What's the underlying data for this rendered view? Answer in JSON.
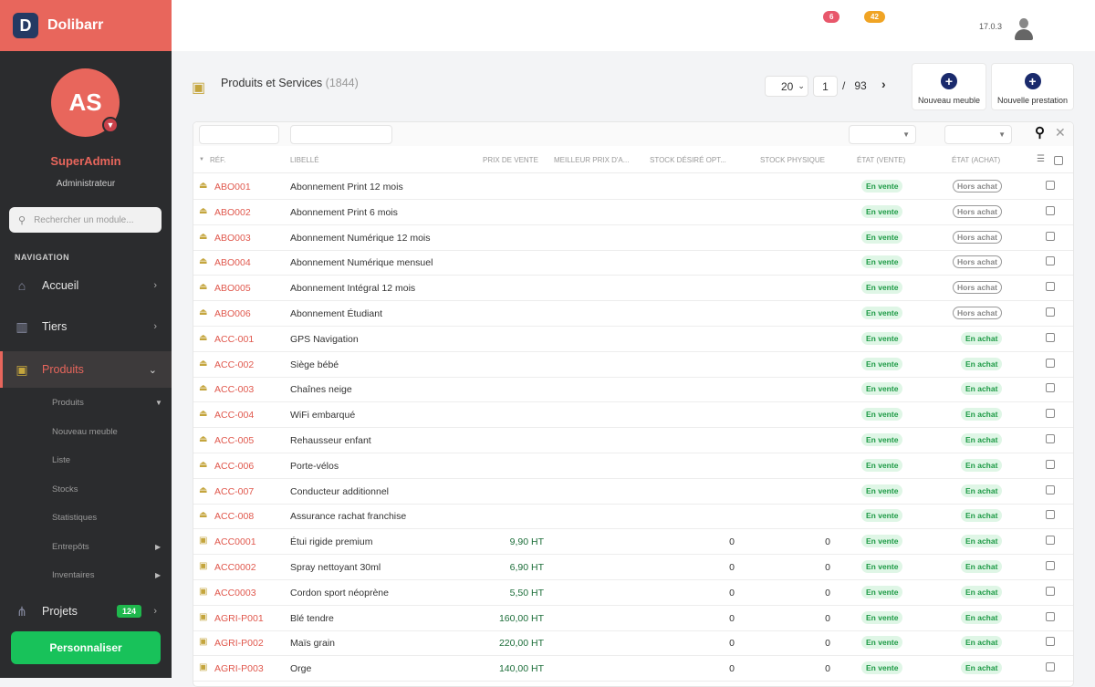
{
  "app": {
    "name": "Dolibarr",
    "logo_letter": "D"
  },
  "user": {
    "initials": "AS",
    "name": "SuperAdmin",
    "role": "Administrateur"
  },
  "sidebar": {
    "search_placeholder": "Rechercher un module...",
    "nav_label": "NAVIGATION",
    "items": [
      {
        "label": "Accueil",
        "icon": "home-icon"
      },
      {
        "label": "Tiers",
        "icon": "building-icon"
      },
      {
        "label": "Produits",
        "icon": "box-icon"
      },
      {
        "label": "Projets",
        "icon": "project-icon",
        "badge": "124"
      }
    ],
    "sub_items": [
      "Produits",
      "Nouveau meuble",
      "Liste",
      "Stocks",
      "Statistiques",
      "Entrepôts",
      "Inventaires"
    ],
    "personalize": "Personnaliser"
  },
  "topbar": {
    "badge_red": "6",
    "badge_orange": "42",
    "version": "17.0.3",
    "colors": {
      "red": "#e8576b",
      "orange": "#f0a424"
    }
  },
  "page": {
    "title": "Produits et Services",
    "count": "(1844)"
  },
  "pagination": {
    "per_page": "20",
    "current": "1",
    "separator": "/",
    "total": "93"
  },
  "actions": [
    "Nouveau meuble",
    "Nouvelle prestation"
  ],
  "columns": [
    "Réf.",
    "Libellé",
    "Prix de vente",
    "Meilleur prix d'a...",
    "Stock désiré opt...",
    "Stock physique",
    "État (vente)",
    "État (achat)"
  ],
  "rows": [
    {
      "ref": "ABO001",
      "label": "Abonnement Print 12 mois",
      "price": "",
      "stock_des": "",
      "stock_phys": "",
      "vente": "En vente",
      "achat": "Hors achat",
      "icon": "service"
    },
    {
      "ref": "ABO002",
      "label": "Abonnement Print 6 mois",
      "price": "",
      "stock_des": "",
      "stock_phys": "",
      "vente": "En vente",
      "achat": "Hors achat",
      "icon": "service"
    },
    {
      "ref": "ABO003",
      "label": "Abonnement Numérique 12 mois",
      "price": "",
      "stock_des": "",
      "stock_phys": "",
      "vente": "En vente",
      "achat": "Hors achat",
      "icon": "service"
    },
    {
      "ref": "ABO004",
      "label": "Abonnement Numérique mensuel",
      "price": "",
      "stock_des": "",
      "stock_phys": "",
      "vente": "En vente",
      "achat": "Hors achat",
      "icon": "service"
    },
    {
      "ref": "ABO005",
      "label": "Abonnement Intégral 12 mois",
      "price": "",
      "stock_des": "",
      "stock_phys": "",
      "vente": "En vente",
      "achat": "Hors achat",
      "icon": "service"
    },
    {
      "ref": "ABO006",
      "label": "Abonnement Étudiant",
      "price": "",
      "stock_des": "",
      "stock_phys": "",
      "vente": "En vente",
      "achat": "Hors achat",
      "icon": "service"
    },
    {
      "ref": "ACC-001",
      "label": "GPS Navigation",
      "price": "",
      "stock_des": "",
      "stock_phys": "",
      "vente": "En vente",
      "achat": "En achat",
      "icon": "service"
    },
    {
      "ref": "ACC-002",
      "label": "Siège bébé",
      "price": "",
      "stock_des": "",
      "stock_phys": "",
      "vente": "En vente",
      "achat": "En achat",
      "icon": "service"
    },
    {
      "ref": "ACC-003",
      "label": "Chaînes neige",
      "price": "",
      "stock_des": "",
      "stock_phys": "",
      "vente": "En vente",
      "achat": "En achat",
      "icon": "service"
    },
    {
      "ref": "ACC-004",
      "label": "WiFi embarqué",
      "price": "",
      "stock_des": "",
      "stock_phys": "",
      "vente": "En vente",
      "achat": "En achat",
      "icon": "service"
    },
    {
      "ref": "ACC-005",
      "label": "Rehausseur enfant",
      "price": "",
      "stock_des": "",
      "stock_phys": "",
      "vente": "En vente",
      "achat": "En achat",
      "icon": "service"
    },
    {
      "ref": "ACC-006",
      "label": "Porte-vélos",
      "price": "",
      "stock_des": "",
      "stock_phys": "",
      "vente": "En vente",
      "achat": "En achat",
      "icon": "service"
    },
    {
      "ref": "ACC-007",
      "label": "Conducteur additionnel",
      "price": "",
      "stock_des": "",
      "stock_phys": "",
      "vente": "En vente",
      "achat": "En achat",
      "icon": "service"
    },
    {
      "ref": "ACC-008",
      "label": "Assurance rachat franchise",
      "price": "",
      "stock_des": "",
      "stock_phys": "",
      "vente": "En vente",
      "achat": "En achat",
      "icon": "service"
    },
    {
      "ref": "ACC0001",
      "label": "Étui rigide premium",
      "price": "9,90 HT",
      "stock_des": "0",
      "stock_phys": "0",
      "vente": "En vente",
      "achat": "En achat",
      "icon": "product"
    },
    {
      "ref": "ACC0002",
      "label": "Spray nettoyant 30ml",
      "price": "6,90 HT",
      "stock_des": "0",
      "stock_phys": "0",
      "vente": "En vente",
      "achat": "En achat",
      "icon": "product"
    },
    {
      "ref": "ACC0003",
      "label": "Cordon sport néoprène",
      "price": "5,50 HT",
      "stock_des": "0",
      "stock_phys": "0",
      "vente": "En vente",
      "achat": "En achat",
      "icon": "product"
    },
    {
      "ref": "AGRI-P001",
      "label": "Blé tendre",
      "price": "160,00 HT",
      "stock_des": "0",
      "stock_phys": "0",
      "vente": "En vente",
      "achat": "En achat",
      "icon": "product"
    },
    {
      "ref": "AGRI-P002",
      "label": "Maïs grain",
      "price": "220,00 HT",
      "stock_des": "0",
      "stock_phys": "0",
      "vente": "En vente",
      "achat": "En achat",
      "icon": "product"
    },
    {
      "ref": "AGRI-P003",
      "label": "Orge",
      "price": "140,00 HT",
      "stock_des": "0",
      "stock_phys": "0",
      "vente": "En vente",
      "achat": "En achat",
      "icon": "product"
    }
  ]
}
